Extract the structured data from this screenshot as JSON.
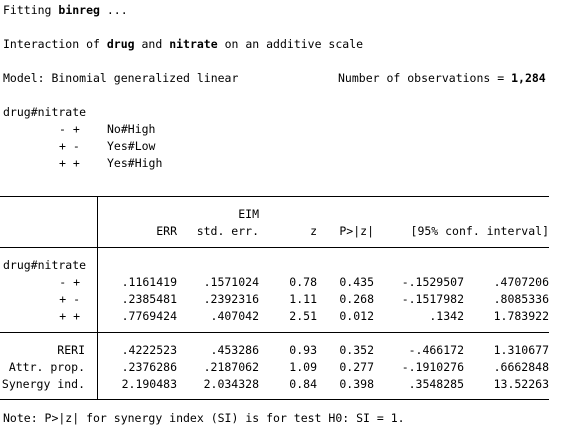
{
  "intro": {
    "fitting_prefix": "Fitting ",
    "fitting_cmd": "binreg",
    "fitting_suffix": " ...",
    "interaction_prefix": "Interaction of ",
    "var1": "drug",
    "and_word": " and ",
    "var2": "nitrate",
    "interaction_suffix": " on an additive scale",
    "model": "Model: Binomial generalized linear",
    "nobs_label": "Number of observations = ",
    "nobs_value": "1,284"
  },
  "legend": {
    "title": "drug#nitrate",
    "rows": [
      {
        "code": "- +",
        "desc": "No#High"
      },
      {
        "code": "+ -",
        "desc": "Yes#Low"
      },
      {
        "code": "+ +",
        "desc": "Yes#High"
      }
    ]
  },
  "table": {
    "header_eim": "EIM",
    "headers": {
      "err": "ERR",
      "se": "std. err.",
      "z": "z",
      "p": "P>|z|",
      "ci": "[95% conf. interval]"
    },
    "group_label": "drug#nitrate",
    "rows1": [
      {
        "label": "- +",
        "err": ".1161419",
        "se": ".1571024",
        "z": "0.78",
        "p": "0.435",
        "lo": "-.1529507",
        "hi": ".4707206"
      },
      {
        "label": "+ -",
        "err": ".2385481",
        "se": ".2392316",
        "z": "1.11",
        "p": "0.268",
        "lo": "-.1517982",
        "hi": ".8085336"
      },
      {
        "label": "+ +",
        "err": ".7769424",
        "se": ".407042",
        "z": "2.51",
        "p": "0.012",
        "lo": ".1342",
        "hi": "1.783922"
      }
    ],
    "rows2": [
      {
        "label": "RERI",
        "err": ".4222523",
        "se": ".453286",
        "z": "0.93",
        "p": "0.352",
        "lo": "-.466172",
        "hi": "1.310677"
      },
      {
        "label": "Attr. prop.",
        "err": ".2376286",
        "se": ".2187062",
        "z": "1.09",
        "p": "0.277",
        "lo": "-.1910276",
        "hi": ".6662848"
      },
      {
        "label": "Synergy ind.",
        "err": "2.190483",
        "se": "2.034328",
        "z": "0.84",
        "p": "0.398",
        "lo": ".3548285",
        "hi": "13.52263"
      }
    ]
  },
  "note": "Note: P>|z| for synergy index (SI) is for test H0: SI = 1."
}
